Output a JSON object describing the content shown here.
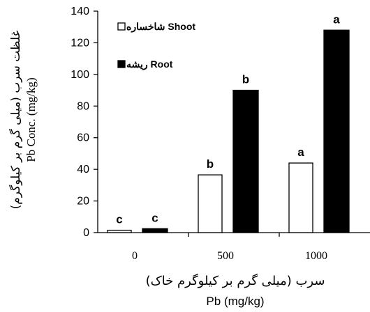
{
  "chart_data": {
    "type": "bar",
    "categories": [
      "0",
      "500",
      "1000"
    ],
    "series": [
      {
        "name": "شاخساره Shoot",
        "values": [
          1.5,
          36.5,
          44
        ],
        "letters": [
          "c",
          "b",
          "a"
        ],
        "fill": "#ffffff",
        "stroke": "#000000"
      },
      {
        "name": "ریشه Root",
        "values": [
          2.5,
          90,
          128
        ],
        "letters": [
          "c",
          "b",
          "a"
        ],
        "fill": "#000000",
        "stroke": "#000000"
      }
    ],
    "ylim": [
      0,
      140
    ],
    "yticks": [
      0,
      20,
      40,
      60,
      80,
      100,
      120,
      140
    ],
    "ytick_labels": [
      "0",
      "20",
      "40",
      "60",
      "80",
      "100",
      "120",
      "140"
    ],
    "ylabel_fa": "غلظت سرب (میلی گرم بر کیلوگرم)",
    "ylabel_en": "Pb Conc. (mg/kg)",
    "xlabel_fa": "سرب (میلی گرم بر کیلوگرم خاک)",
    "xlabel_en": "Pb (mg/kg)",
    "legend_position": "top-left",
    "grid": false
  }
}
